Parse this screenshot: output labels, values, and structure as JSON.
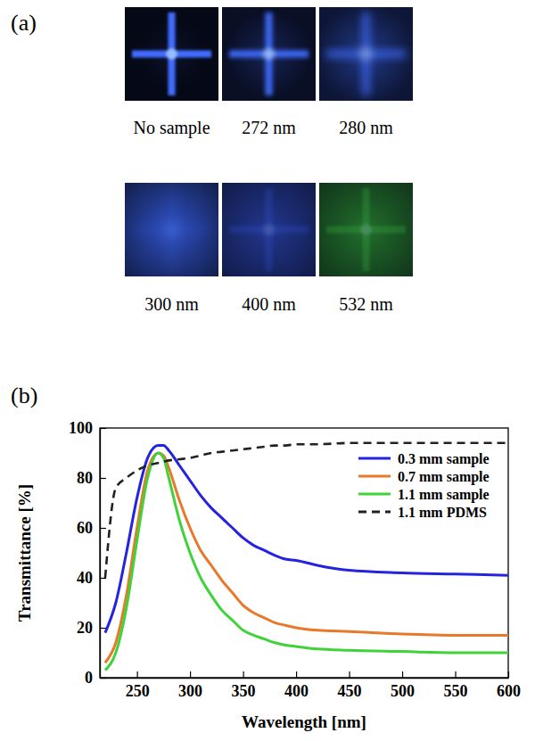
{
  "figure": {
    "panel_a": {
      "letter": "(a)",
      "images": [
        {
          "caption": "No sample",
          "color": "#3f6cff"
        },
        {
          "caption": "272 nm",
          "color": "#3f6cff"
        },
        {
          "caption": "280 nm",
          "color": "#3f6cff"
        },
        {
          "caption": "300 nm",
          "color": "#3a63f0"
        },
        {
          "caption": "400 nm",
          "color": "#3658e6"
        },
        {
          "caption": "532 nm",
          "color": "#36b441"
        }
      ]
    },
    "panel_b": {
      "letter": "(b)"
    }
  },
  "chart_data": {
    "type": "line",
    "x_label": "Wavelength [nm]",
    "y_label": "Transmittance [%]",
    "x": [
      220,
      230,
      240,
      250,
      260,
      270,
      275,
      280,
      290,
      300,
      310,
      320,
      330,
      340,
      350,
      360,
      370,
      380,
      390,
      400,
      420,
      450,
      500,
      550,
      600
    ],
    "series": [
      {
        "name": "0.3 mm sample",
        "color": "#2424e0",
        "line_style": "solid",
        "values": [
          18,
          30,
          50,
          72,
          88,
          93,
          93,
          91,
          85,
          79,
          73,
          68,
          64,
          60,
          56,
          53,
          51,
          49,
          47.5,
          47,
          45,
          43,
          42,
          41.5,
          41
        ]
      },
      {
        "name": "0.7 mm sample",
        "color": "#e8782a",
        "line_style": "solid",
        "values": [
          6,
          14,
          33,
          60,
          83,
          90,
          89,
          84,
          71,
          60,
          51,
          45,
          39,
          34,
          29,
          26,
          24,
          22,
          21,
          20,
          19,
          18.5,
          17.5,
          17,
          17
        ]
      },
      {
        "name": "1.1 mm sample",
        "color": "#3fd33a",
        "line_style": "solid",
        "values": [
          3,
          10,
          28,
          55,
          80,
          90,
          88,
          80,
          63,
          50,
          40,
          33,
          27,
          23,
          19,
          17,
          15.5,
          14,
          13,
          12.5,
          11.5,
          11,
          10.5,
          10,
          10
        ]
      },
      {
        "name": "1.1 mm PDMS",
        "color": "#222222",
        "line_style": "dashed",
        "values": [
          40,
          76,
          80,
          83,
          85,
          86,
          86.5,
          87,
          87.5,
          88,
          89,
          90,
          90.5,
          91,
          91.5,
          92,
          92.5,
          93,
          93,
          93.5,
          93.5,
          94,
          94,
          94,
          94
        ]
      }
    ],
    "xlim": [
      215,
      600
    ],
    "ylim": [
      0,
      100
    ],
    "xticks": [
      250,
      300,
      350,
      400,
      450,
      500,
      550,
      600
    ],
    "yticks": [
      0,
      20,
      40,
      60,
      80,
      100
    ],
    "legend": "top-right",
    "grid": false
  }
}
